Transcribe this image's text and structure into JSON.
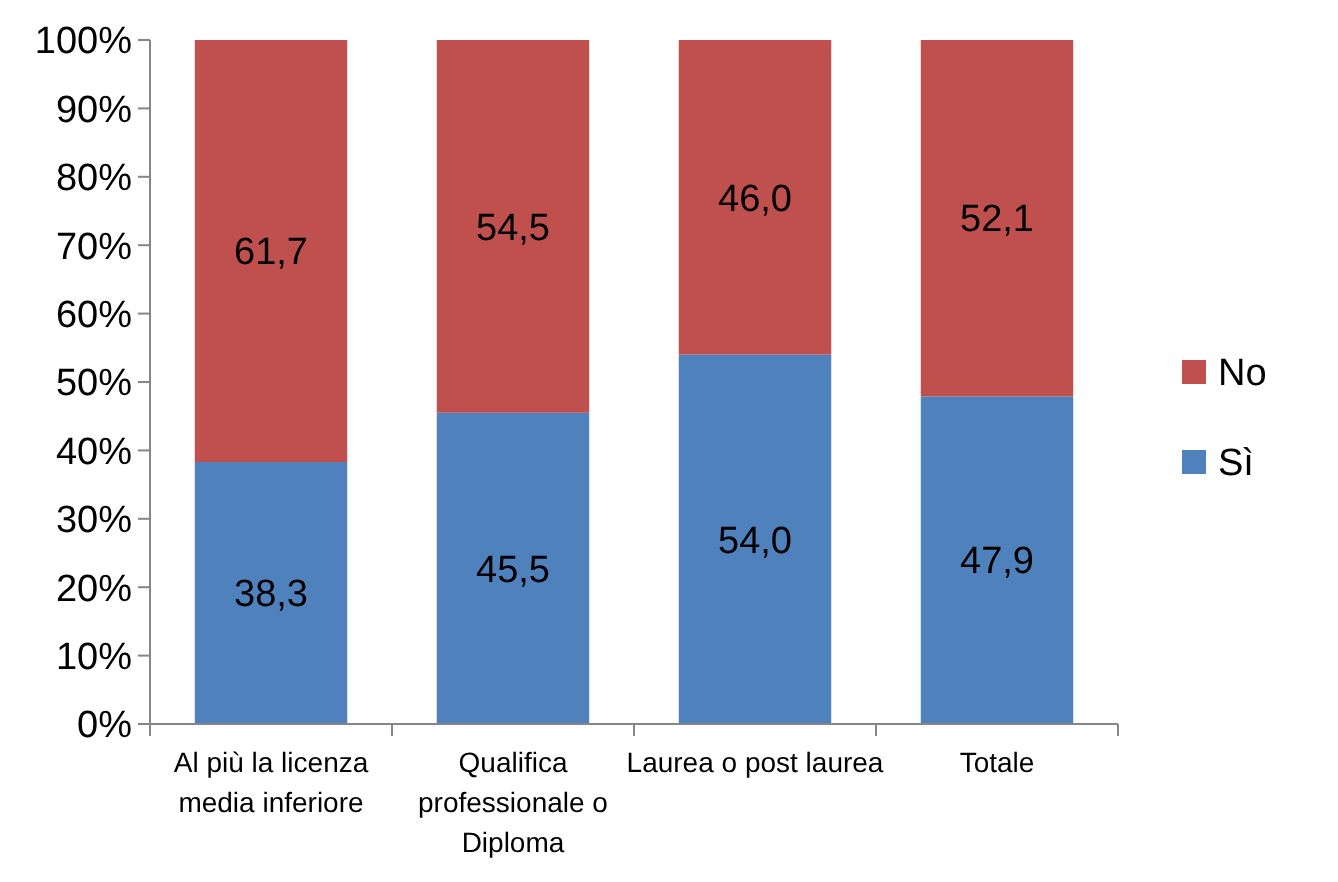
{
  "chart_data": {
    "type": "bar",
    "stacked": true,
    "categories": [
      "Al più la licenza media inferiore",
      "Qualifica professionale o Diploma",
      "Laurea o post laurea",
      "Totale"
    ],
    "series": [
      {
        "name": "Sì",
        "color": "#4f81bd",
        "values": [
          38.3,
          45.5,
          54.0,
          47.9
        ],
        "value_labels": [
          "38,3",
          "45,5",
          "54,0",
          "47,9"
        ]
      },
      {
        "name": "No",
        "color": "#c0504d",
        "values": [
          61.7,
          54.5,
          46.0,
          52.1
        ],
        "value_labels": [
          "61,7",
          "54,5",
          "46,0",
          "52,1"
        ]
      }
    ],
    "ylim": [
      0,
      100
    ],
    "yticks": [
      {
        "value": 0,
        "label": "0%"
      },
      {
        "value": 10,
        "label": "10%"
      },
      {
        "value": 20,
        "label": "20%"
      },
      {
        "value": 30,
        "label": "30%"
      },
      {
        "value": 40,
        "label": "40%"
      },
      {
        "value": 50,
        "label": "50%"
      },
      {
        "value": 60,
        "label": "60%"
      },
      {
        "value": 70,
        "label": "70%"
      },
      {
        "value": 80,
        "label": "80%"
      },
      {
        "value": 90,
        "label": "90%"
      },
      {
        "value": 100,
        "label": "100%"
      }
    ],
    "grid": false,
    "legend": "right"
  }
}
